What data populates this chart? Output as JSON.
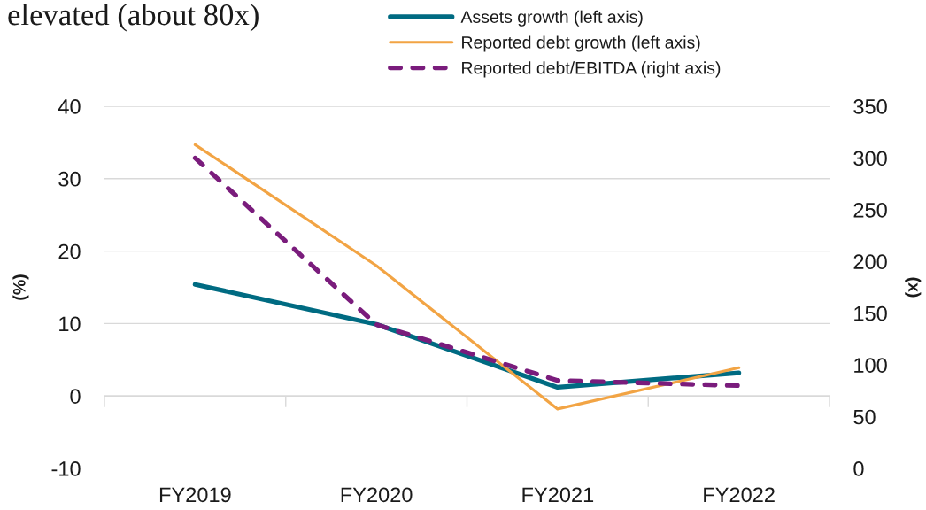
{
  "chart_data": {
    "type": "line",
    "title": "elevated (about 80x)",
    "categories": [
      "FY2019",
      "FY2020",
      "FY2021",
      "FY2022"
    ],
    "ylabel": "(%)",
    "y2label": "(x)",
    "ylim": [
      -10,
      40
    ],
    "yticks": [
      -10,
      0,
      10,
      20,
      30,
      40
    ],
    "y2lim": [
      0,
      350
    ],
    "y2ticks": [
      0,
      50,
      100,
      150,
      200,
      250,
      300,
      350
    ],
    "grid": "y",
    "legend": "top",
    "series": [
      {
        "name": "Assets growth (left axis)",
        "color": "#006b82",
        "values": [
          15.4,
          9.9,
          1.2,
          3.2
        ],
        "line_style": "solid"
      },
      {
        "name": "Reported debt growth (left axis)",
        "color": "#f2a444",
        "values": [
          34.7,
          18.0,
          -1.8,
          3.9
        ],
        "line_style": "solid"
      },
      {
        "name": "Reported debt/EBITDA (right axis)",
        "color": "#7a1c7c",
        "values": [
          300,
          139,
          85,
          80
        ],
        "axis": "y2",
        "line_style": "dashed"
      }
    ]
  }
}
